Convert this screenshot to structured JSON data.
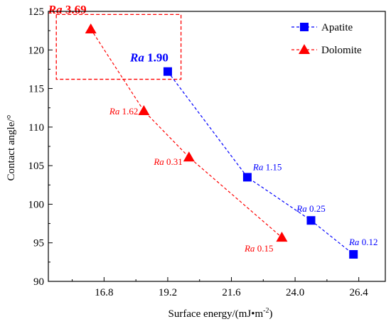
{
  "chart_data": {
    "type": "line",
    "xlabel": "Surface energy/(mJ•m",
    "xlabel_sup": "-2",
    "xlabel_tail": ")",
    "ylabel": "Contact angle/°",
    "xlim": [
      14.7,
      27.4
    ],
    "ylim": [
      90,
      125
    ],
    "xticks": [
      16.8,
      19.2,
      21.6,
      24.0,
      26.4
    ],
    "xtick_labels": [
      "16.8",
      "19.2",
      "21.6",
      "24.0",
      "26.4"
    ],
    "yticks": [
      90,
      95,
      100,
      105,
      110,
      115,
      120,
      125
    ],
    "ytick_labels": [
      "90",
      "95",
      "100",
      "105",
      "110",
      "115",
      "120",
      "125"
    ],
    "legend_position": "top-right",
    "series": [
      {
        "name": "Apatite",
        "marker": "square",
        "color": "#0000ff",
        "line": "dashed",
        "x": [
          19.2,
          22.2,
          24.6,
          26.2
        ],
        "y": [
          117.2,
          103.5,
          97.9,
          93.5
        ],
        "labels": [
          {
            "italic": "Ra",
            "num": "1.90",
            "big": true
          },
          {
            "italic": "Ra",
            "num": "1.15",
            "big": false
          },
          {
            "italic": "Ra",
            "num": "0.25",
            "big": false
          },
          {
            "italic": "Ra",
            "num": "0.12",
            "big": false
          }
        ]
      },
      {
        "name": "Dolomite",
        "marker": "triangle",
        "color": "#ff0000",
        "line": "dashed",
        "x": [
          16.3,
          18.3,
          20.0,
          23.5
        ],
        "y": [
          122.7,
          112.1,
          106.1,
          95.7
        ],
        "labels": [
          {
            "italic": "Ra",
            "num": "3.69",
            "big": true
          },
          {
            "italic": "Ra",
            "num": "1.62",
            "big": false
          },
          {
            "italic": "Ra",
            "num": "0.31",
            "big": false
          },
          {
            "italic": "Ra",
            "num": "0.15",
            "big": false
          }
        ]
      }
    ],
    "highlight_box": {
      "color": "#ff0000",
      "style": "dashed",
      "x_range": [
        15.0,
        19.7
      ],
      "y_range": [
        116.2,
        124.6
      ]
    }
  }
}
